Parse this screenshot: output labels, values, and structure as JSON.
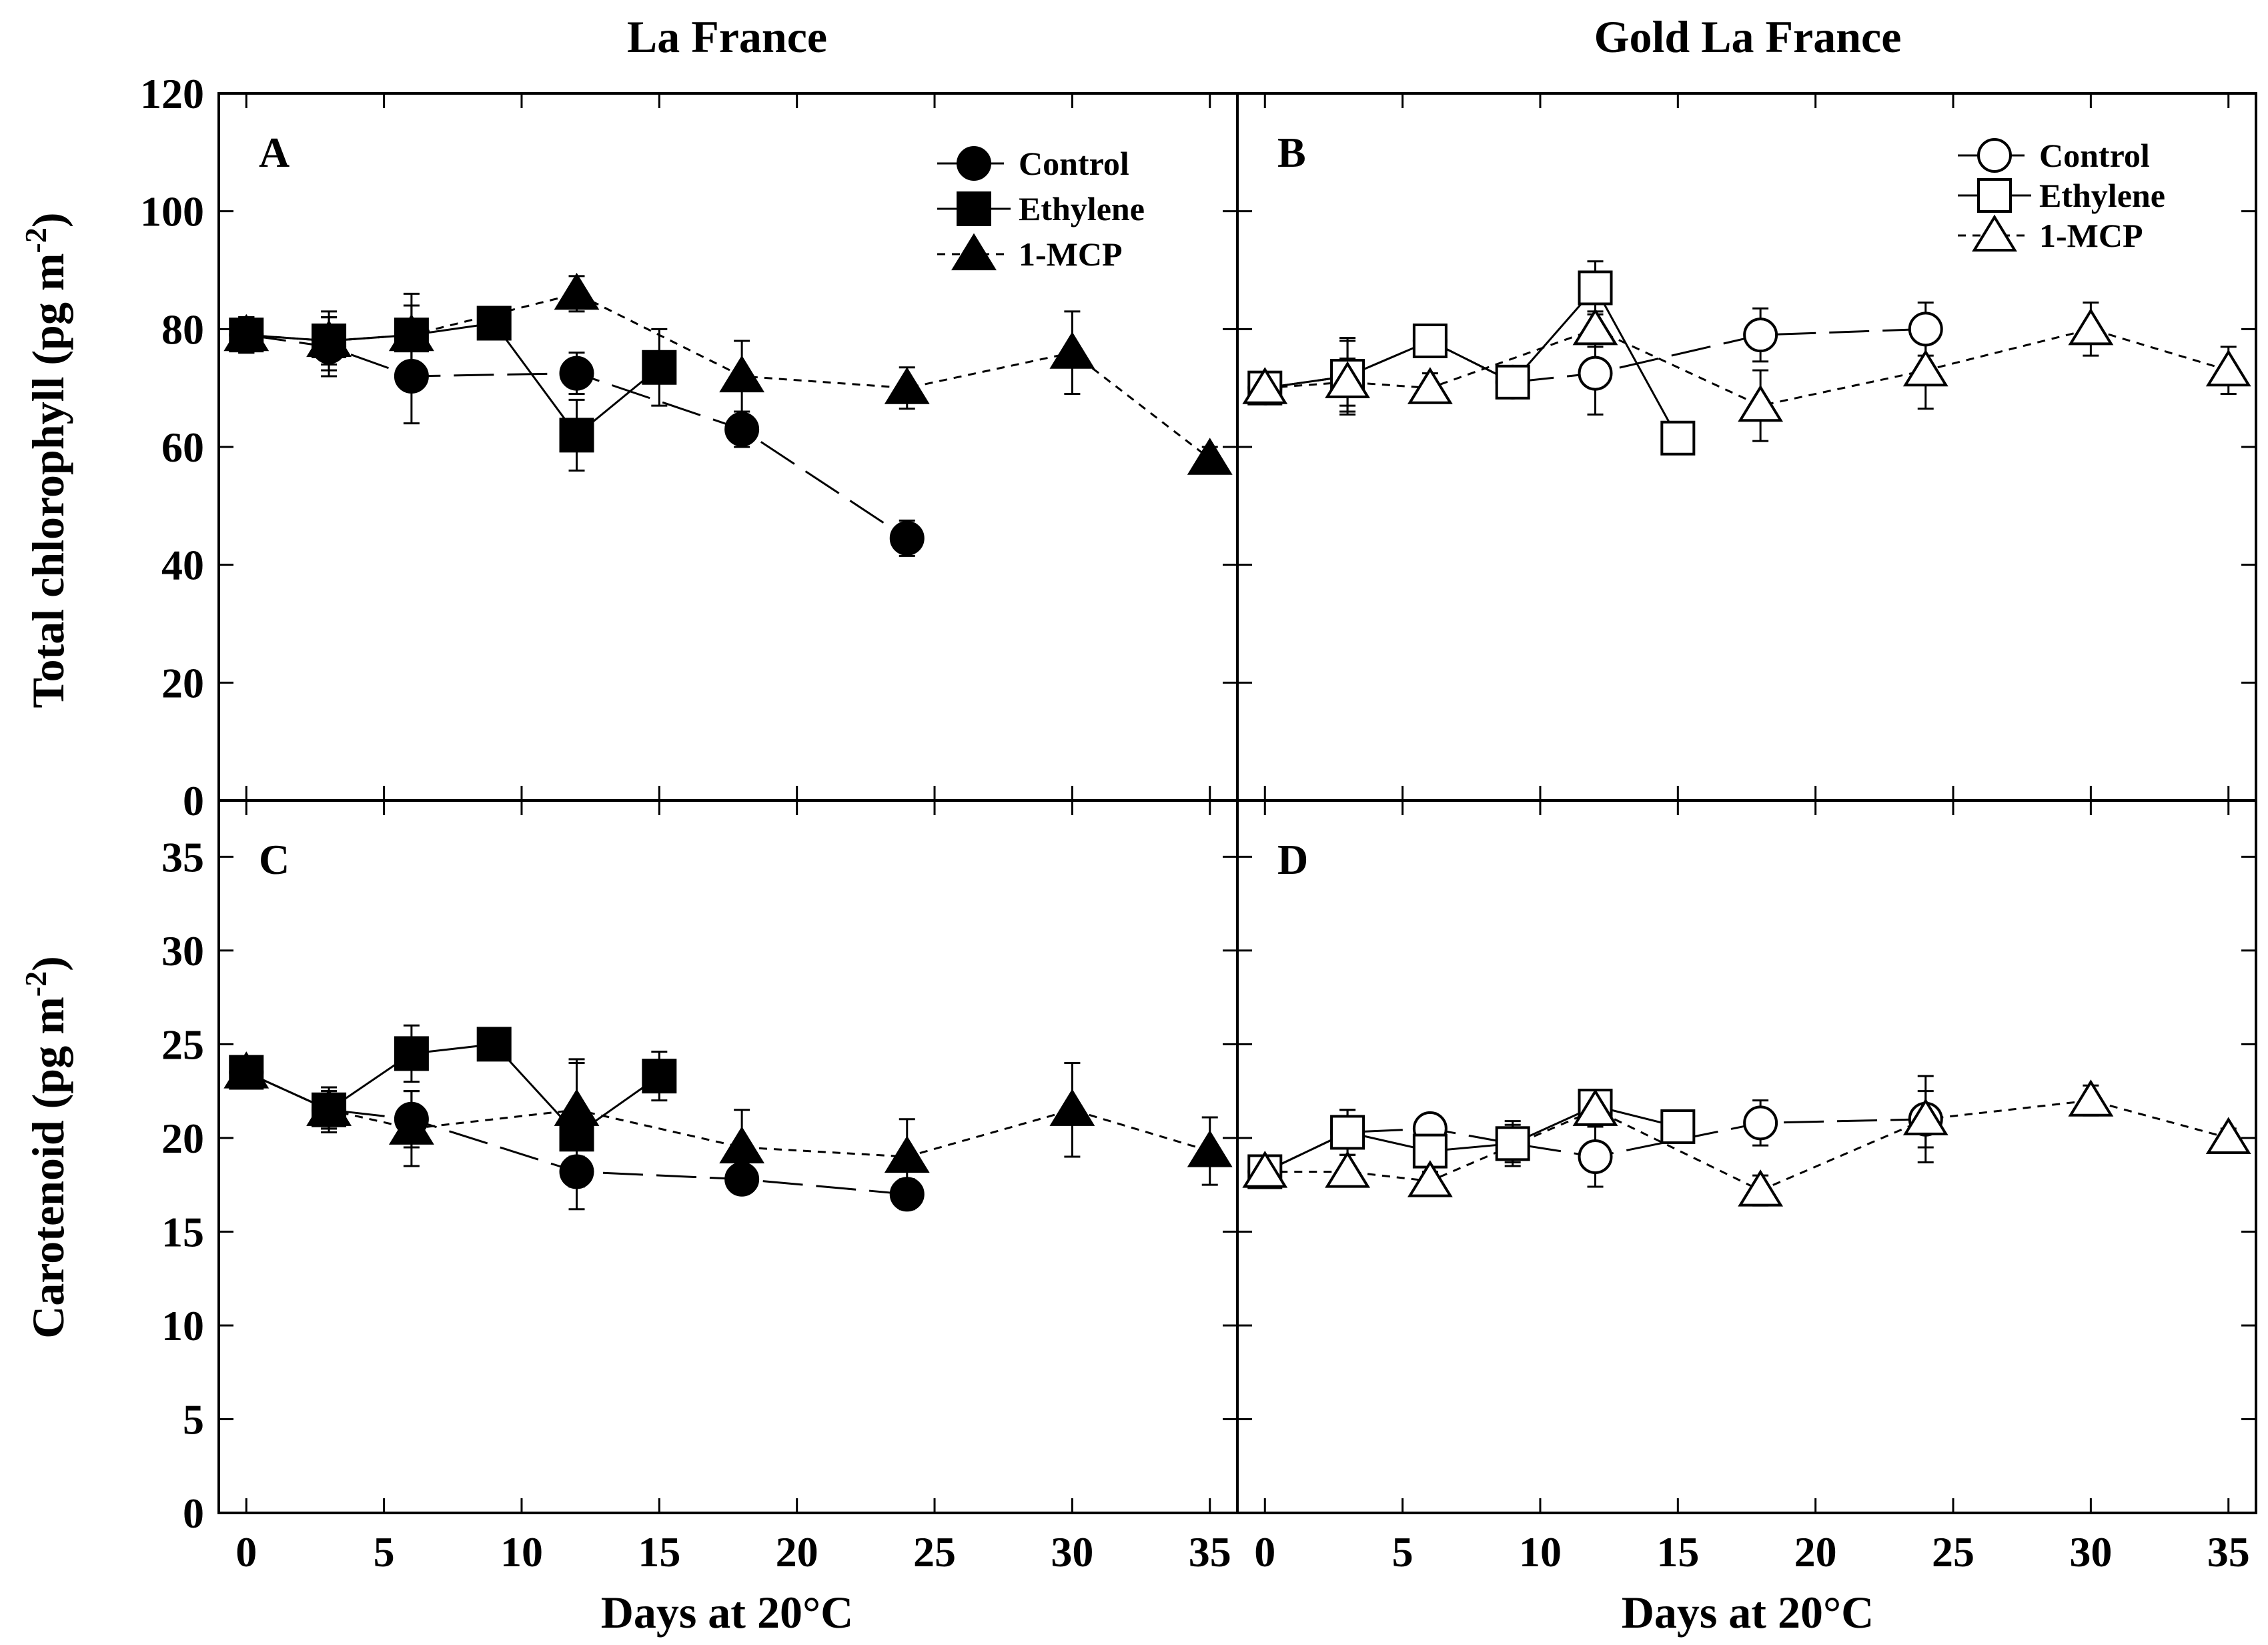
{
  "column_titles": [
    "La France",
    "Gold La France"
  ],
  "x_axis_label": "Days at 20°C",
  "y_axis_labels": {
    "top": {
      "main": "Total chlorophyll (pg m",
      "sup": "-2",
      "close": ")"
    },
    "bottom": {
      "main": "Carotenoid (pg m",
      "sup": "-2",
      "close": ")"
    }
  },
  "chart_data": [
    {
      "panel": "A",
      "type": "line",
      "cultivar": "La France",
      "ylabel": "Total chlorophyll (pg m-2)",
      "xlabel": "Days at 20°C",
      "xlim": [
        -1,
        36
      ],
      "ylim": [
        0,
        120
      ],
      "xticks": [
        0,
        5,
        10,
        15,
        20,
        25,
        30,
        35
      ],
      "yticks": [
        0,
        20,
        40,
        60,
        80,
        100,
        120
      ],
      "legend": "top-right",
      "marker_fill": "filled",
      "series": [
        {
          "name": "Control",
          "marker": "circle",
          "dash": "long",
          "x": [
            0,
            3,
            6,
            12,
            18,
            24
          ],
          "y": [
            79,
            77,
            72,
            72.5,
            63,
            44.5
          ],
          "err": [
            3,
            5,
            8,
            3.5,
            3,
            3
          ]
        },
        {
          "name": "Ethylene",
          "marker": "square",
          "dash": "solid",
          "x": [
            0,
            3,
            6,
            9,
            12,
            15
          ],
          "y": [
            79,
            78,
            79,
            81,
            62,
            73.5
          ],
          "err": [
            3,
            5,
            7,
            2,
            6,
            6.5
          ]
        },
        {
          "name": "1-MCP",
          "marker": "triangle",
          "dash": "short",
          "x": [
            0,
            3,
            6,
            12,
            18,
            24,
            30,
            35
          ],
          "y": [
            79,
            78,
            79,
            86,
            72,
            70,
            76,
            58
          ],
          "err": [
            3,
            4,
            5,
            3,
            6,
            3.5,
            7,
            2
          ]
        }
      ]
    },
    {
      "panel": "B",
      "type": "line",
      "cultivar": "Gold La France",
      "ylabel": "Total chlorophyll (pg m-2)",
      "xlabel": "Days at 20°C",
      "xlim": [
        -1,
        36
      ],
      "ylim": [
        0,
        120
      ],
      "xticks": [
        0,
        5,
        10,
        15,
        20,
        25,
        30,
        35
      ],
      "yticks": [
        0,
        20,
        40,
        60,
        80,
        100,
        120
      ],
      "legend": "top-right",
      "marker_fill": "open",
      "series": [
        {
          "name": "Control",
          "marker": "circle",
          "dash": "long",
          "x": [
            0,
            3,
            6,
            9,
            12,
            18,
            24
          ],
          "y": [
            70,
            72,
            78,
            71,
            72.5,
            79,
            80
          ],
          "err": [
            1.5,
            6,
            2,
            1,
            7,
            4.5,
            4.5
          ]
        },
        {
          "name": "Ethylene",
          "marker": "square",
          "dash": "solid",
          "x": [
            0,
            3,
            6,
            9,
            12,
            15
          ],
          "y": [
            70,
            72,
            78,
            71,
            87,
            61.5
          ],
          "err": [
            1.5,
            6.5,
            2,
            1,
            4.5,
            1
          ]
        },
        {
          "name": "1-MCP",
          "marker": "triangle",
          "dash": "short",
          "x": [
            0,
            3,
            6,
            12,
            18,
            24,
            30,
            35
          ],
          "y": [
            70,
            71,
            70,
            80,
            67,
            73,
            80,
            73
          ],
          "err": [
            1.5,
            4,
            2.5,
            3,
            6,
            6.5,
            4.5,
            4
          ]
        }
      ]
    },
    {
      "panel": "C",
      "type": "line",
      "cultivar": "La France",
      "ylabel": "Carotenoid (pg m-2)",
      "xlabel": "Days at 20°C",
      "xlim": [
        -1,
        36
      ],
      "ylim": [
        0,
        38
      ],
      "xticks": [
        0,
        5,
        10,
        15,
        20,
        25,
        30,
        35
      ],
      "yticks": [
        0,
        5,
        10,
        15,
        20,
        25,
        30,
        35
      ],
      "legend": "none",
      "marker_fill": "filled",
      "series": [
        {
          "name": "Control",
          "marker": "circle",
          "dash": "long",
          "x": [
            0,
            3,
            6,
            12,
            18,
            24
          ],
          "y": [
            23.5,
            21.5,
            21,
            18.2,
            17.8,
            17
          ],
          "err": [
            0.5,
            1,
            1.5,
            0.8,
            0.5,
            0.8
          ]
        },
        {
          "name": "Ethylene",
          "marker": "square",
          "dash": "solid",
          "x": [
            0,
            3,
            6,
            9,
            12,
            15
          ],
          "y": [
            23.5,
            21.5,
            24.5,
            25,
            20.2,
            23.3
          ],
          "err": [
            0.5,
            1.2,
            1.5,
            0.5,
            4,
            1.3
          ]
        },
        {
          "name": "1-MCP",
          "marker": "triangle",
          "dash": "short",
          "x": [
            0,
            3,
            6,
            12,
            18,
            24,
            30,
            35
          ],
          "y": [
            23.5,
            21.5,
            20.5,
            21.5,
            19.5,
            19,
            21.5,
            19.3
          ],
          "err": [
            0.5,
            1,
            2,
            2.5,
            2,
            2,
            2.5,
            1.8
          ]
        }
      ]
    },
    {
      "panel": "D",
      "type": "line",
      "cultivar": "Gold La France",
      "ylabel": "Carotenoid (pg m-2)",
      "xlabel": "Days at 20°C",
      "xlim": [
        -1,
        36
      ],
      "ylim": [
        0,
        38
      ],
      "xticks": [
        0,
        5,
        10,
        15,
        20,
        25,
        30,
        35
      ],
      "yticks": [
        0,
        5,
        10,
        15,
        20,
        25,
        30,
        35
      ],
      "legend": "none",
      "marker_fill": "open",
      "series": [
        {
          "name": "Control",
          "marker": "circle",
          "dash": "long",
          "x": [
            0,
            3,
            6,
            9,
            12,
            18,
            24
          ],
          "y": [
            18.2,
            20.3,
            20.5,
            19.7,
            19,
            20.8,
            21
          ],
          "err": [
            0.5,
            1.2,
            0.5,
            1,
            1.6,
            1.2,
            2.3
          ]
        },
        {
          "name": "Ethylene",
          "marker": "square",
          "dash": "solid",
          "x": [
            0,
            3,
            6,
            9,
            12,
            15
          ],
          "y": [
            18.2,
            20.3,
            19.3,
            19.7,
            21.7,
            20.6
          ],
          "err": [
            0.5,
            1.2,
            0.8,
            1.2,
            0.7,
            0.5
          ]
        },
        {
          "name": "1-MCP",
          "marker": "triangle",
          "dash": "short",
          "x": [
            0,
            3,
            6,
            12,
            18,
            24,
            30,
            35
          ],
          "y": [
            18.2,
            18.2,
            17.7,
            21.5,
            17.2,
            21,
            22,
            20
          ],
          "err": [
            0.5,
            0.3,
            0.5,
            0.8,
            0.8,
            1.5,
            0.8,
            0.5
          ]
        }
      ]
    }
  ]
}
